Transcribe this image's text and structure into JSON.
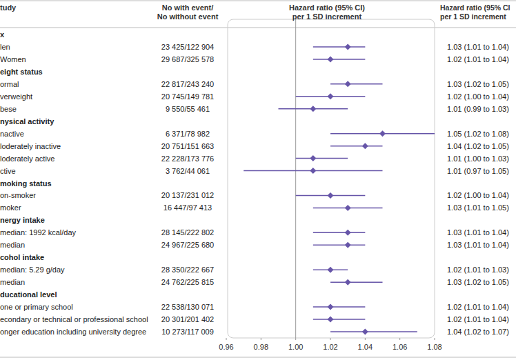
{
  "chart_data": {
    "type": "forest",
    "columns": [
      [
        "tudy"
      ],
      [
        "No with event/",
        "No without event"
      ],
      [
        "Hazard ratio (95% CI)",
        "per 1 SD increment"
      ],
      [
        "Hazard ratio (95% CI",
        "per 1 SD increment"
      ]
    ],
    "color": "#6655a8",
    "categories": [
      "x",
      "len",
      "Women",
      "eight status",
      "ormal",
      "verweight",
      "bese",
      "nysical activity",
      "nactive",
      "loderately inactive",
      "loderately active",
      "ctive",
      "moking status",
      "on-smoker",
      "moker",
      "nergy intake",
      "median: 1992 kcal/day",
      "median",
      "cohol intake",
      "median: 5.29 g/day",
      "median",
      "ducational level",
      "one or primary school",
      "econdary or technical or professional school",
      "onger education including university degree"
    ],
    "counts": [
      null,
      "23 425/122 904",
      "29 687/325 578",
      null,
      "22 817/243 240",
      "20 745/149 781",
      "9 550/55 461",
      null,
      "6 371/78 982",
      "20 751/151 663",
      "22 228/173 776",
      "3 762/44 061",
      null,
      "20 137/231 012",
      "16 447/97 413",
      null,
      "28 145/222 802",
      "24 967/225 680",
      null,
      "28 350/222 667",
      "24 762/225 815",
      null,
      "22 538/130 071",
      "20 301/201 402",
      "10 273/117 009"
    ],
    "values": [
      null,
      1.03,
      1.02,
      null,
      1.03,
      1.02,
      1.01,
      null,
      1.05,
      1.04,
      1.01,
      1.01,
      null,
      1.02,
      1.03,
      null,
      1.03,
      1.03,
      null,
      1.02,
      1.03,
      null,
      1.02,
      1.02,
      1.04
    ],
    "ci_low": [
      null,
      1.01,
      1.01,
      null,
      1.02,
      1.0,
      0.99,
      null,
      1.02,
      1.02,
      1.0,
      0.97,
      null,
      1.0,
      1.01,
      null,
      1.01,
      1.01,
      null,
      1.01,
      1.02,
      null,
      1.01,
      1.01,
      1.02
    ],
    "ci_high": [
      null,
      1.04,
      1.04,
      null,
      1.05,
      1.04,
      1.03,
      null,
      1.08,
      1.05,
      1.03,
      1.05,
      null,
      1.04,
      1.05,
      null,
      1.04,
      1.04,
      null,
      1.03,
      1.05,
      null,
      1.04,
      1.04,
      1.07
    ],
    "value_labels": [
      null,
      "1.03 (1.01 to 1.04)",
      "1.02 (1.01 to 1.04)",
      null,
      "1.03 (1.02 to 1.05)",
      "1.02 (1.00 to 1.04)",
      "1.01 (0.99 to 1.03)",
      null,
      "1.05 (1.02 to 1.08)",
      "1.04 (1.02 to 1.05)",
      "1.01 (1.00 to 1.03)",
      "1.01 (0.97 to 1.05)",
      null,
      "1.02 (1.00 to 1.04)",
      "1.03 (1.01 to 1.05)",
      null,
      "1.03 (1.01 to 1.04)",
      "1.03 (1.01 to 1.04)",
      null,
      "1.02 (1.01 to 1.03)",
      "1.03 (1.02 to 1.05)",
      null,
      "1.02 (1.01 to 1.04)",
      "1.02 (1.01 to 1.04)",
      "1.04 (1.02 to 1.07)"
    ],
    "reference_line": 1,
    "xlim": [
      0.96,
      1.08
    ],
    "xticks": [
      0.96,
      0.98,
      {
        "value": 1,
        "label": "1.00"
      },
      1.02,
      1.04,
      1.06,
      1.08
    ],
    "marker": "diamond"
  }
}
